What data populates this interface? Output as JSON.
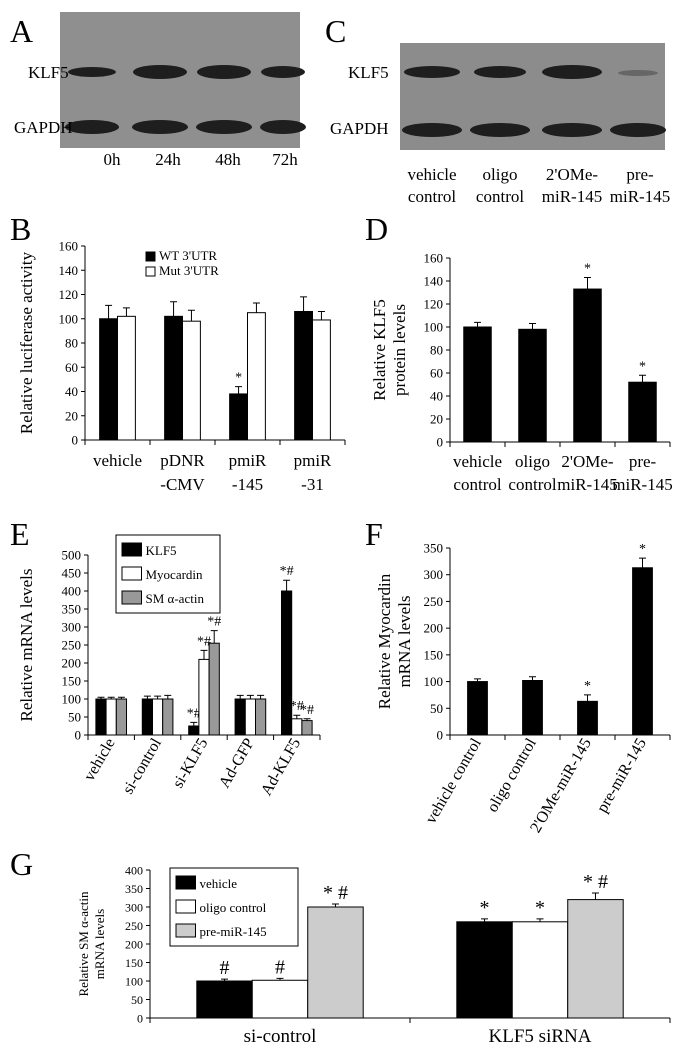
{
  "blots": [
    {
      "panel": "A",
      "rows": [
        "KLF5",
        "GAPDH"
      ],
      "lanes": [
        "0h",
        "24h",
        "48h",
        "72h"
      ]
    },
    {
      "panel": "C",
      "rows": [
        "KLF5",
        "GAPDH"
      ],
      "lanes": [
        [
          "vehicle",
          "control"
        ],
        [
          "oligo",
          "control"
        ],
        [
          "2'OMe-",
          "miR-145"
        ],
        [
          "pre-",
          "miR-145"
        ]
      ]
    }
  ],
  "chart_data": [
    {
      "type": "bar",
      "panel": "B",
      "y_label": [
        "Relative luciferase activity"
      ],
      "categories": [
        "vehicle",
        [
          "pDNR",
          "-CMV"
        ],
        [
          "pmiR",
          "-145"
        ],
        [
          "pmiR",
          "-31"
        ]
      ],
      "series": [
        {
          "name": "WT 3'UTR",
          "color": "#000000",
          "values": [
            100,
            102,
            38,
            106
          ],
          "errors": [
            11,
            12,
            6,
            12
          ],
          "annotations": [
            null,
            null,
            "*",
            null
          ]
        },
        {
          "name": "Mut 3'UTR",
          "color": "#ffffff",
          "values": [
            102,
            98,
            105,
            99
          ],
          "errors": [
            7,
            9,
            8,
            7
          ],
          "annotations": [
            null,
            null,
            null,
            null
          ]
        }
      ],
      "ylim": [
        0,
        160
      ],
      "yticks": [
        0,
        20,
        40,
        60,
        80,
        100,
        120,
        140,
        160
      ],
      "legend_box": false,
      "rotate_x_labels": false
    },
    {
      "type": "bar",
      "panel": "D",
      "y_label": [
        "Relative KLF5",
        "protein levels"
      ],
      "categories": [
        [
          "vehicle",
          "control"
        ],
        [
          "oligo",
          "control"
        ],
        [
          "2'OMe-",
          "miR-145"
        ],
        [
          "pre-",
          "miR-145"
        ]
      ],
      "values": [
        100,
        98,
        133,
        52
      ],
      "errors": [
        4,
        5,
        10,
        6
      ],
      "annotations": [
        null,
        null,
        "*",
        "*"
      ],
      "color": "#000000",
      "ylim": [
        0,
        160
      ],
      "yticks": [
        0,
        20,
        40,
        60,
        80,
        100,
        120,
        140,
        160
      ],
      "rotate_x_labels": false
    },
    {
      "type": "bar",
      "panel": "E",
      "y_label": [
        "Relative mRNA levels"
      ],
      "categories": [
        "vehicle",
        "si-control",
        "si-KLF5",
        "Ad-GFP",
        "Ad-KLF5"
      ],
      "series": [
        {
          "name": "KLF5",
          "color": "#000000",
          "values": [
            100,
            100,
            25,
            100,
            400
          ],
          "errors": [
            5,
            8,
            10,
            10,
            30
          ],
          "annotations": [
            null,
            null,
            "*#",
            null,
            "*#"
          ]
        },
        {
          "name": "Myocardin",
          "color": "#ffffff",
          "values": [
            100,
            100,
            210,
            100,
            45
          ],
          "errors": [
            5,
            8,
            25,
            10,
            10
          ],
          "annotations": [
            null,
            null,
            "*#",
            null,
            "*#"
          ]
        },
        {
          "name": "SM α-actin",
          "color": "#999999",
          "values": [
            100,
            100,
            255,
            100,
            40
          ],
          "errors": [
            5,
            10,
            35,
            10,
            5
          ],
          "annotations": [
            null,
            null,
            "*#",
            null,
            "*#"
          ]
        }
      ],
      "ylim": [
        0,
        500
      ],
      "yticks": [
        0,
        50,
        100,
        150,
        200,
        250,
        300,
        350,
        400,
        450,
        500
      ],
      "legend_box": true,
      "rotate_x_labels": true
    },
    {
      "type": "bar",
      "panel": "F",
      "y_label": [
        "Relative Myocardin",
        "mRNA levels"
      ],
      "categories": [
        "vehicle control",
        "oligo control",
        "2'OMe-miR-145",
        "pre-miR-145"
      ],
      "values": [
        100,
        102,
        63,
        313
      ],
      "errors": [
        5,
        7,
        12,
        18
      ],
      "annotations": [
        null,
        null,
        "*",
        "*"
      ],
      "color": "#000000",
      "ylim": [
        0,
        350
      ],
      "yticks": [
        0,
        50,
        100,
        150,
        200,
        250,
        300,
        350
      ],
      "rotate_x_labels": true
    },
    {
      "type": "bar",
      "panel": "G",
      "y_label": [
        "Relative SM α-actin",
        "mRNA levels"
      ],
      "categories": [
        "si-control",
        "KLF5 siRNA"
      ],
      "series": [
        {
          "name": "vehicle",
          "color": "#000000",
          "values": [
            100,
            260
          ],
          "errors": [
            5,
            8
          ],
          "annotations": [
            "#",
            "*"
          ]
        },
        {
          "name": "oligo control",
          "color": "#ffffff",
          "values": [
            102,
            260
          ],
          "errors": [
            5,
            8
          ],
          "annotations": [
            "#",
            "*"
          ]
        },
        {
          "name": "pre-miR-145",
          "color": "#cccccc",
          "values": [
            300,
            320
          ],
          "errors": [
            8,
            18
          ],
          "annotations": [
            "* #",
            "* #"
          ]
        }
      ],
      "ylim": [
        0,
        400
      ],
      "yticks": [
        0,
        50,
        100,
        150,
        200,
        250,
        300,
        350,
        400
      ],
      "legend_box": true,
      "rotate_x_labels": false
    }
  ]
}
